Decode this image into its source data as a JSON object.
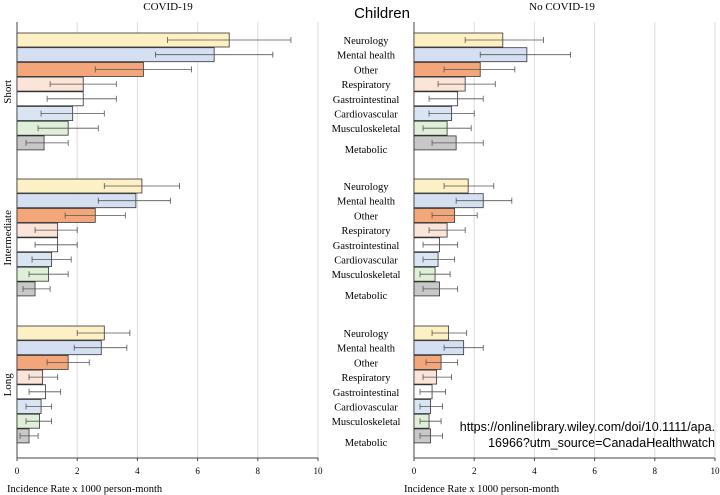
{
  "title": "Children",
  "source_note": {
    "line1": "https://onlinelibrary.wiley.com/doi/10.1111/apa.",
    "line2": "16966?utm_source=CanadaHealthwatch"
  },
  "chart_data": {
    "type": "bar",
    "orientation": "horizontal",
    "title": "Children",
    "xlabel": "Incidence Rate x 1000 person-month",
    "xlim": [
      0,
      10
    ],
    "xticks": [
      0,
      2,
      4,
      6,
      8,
      10
    ],
    "grid": true,
    "categories": [
      "Neurology",
      "Mental health",
      "Other",
      "Respiratory",
      "Gastrointestinal",
      "Cardiovascular",
      "Musculoskeletal",
      "Metabolic"
    ],
    "category_colors": {
      "Neurology": "#fdf0c4",
      "Mental health": "#d4dff1",
      "Other": "#f2a67a",
      "Respiratory": "#fbe4d8",
      "Gastrointestinal": "#ffffff",
      "Cardiovascular": "#dae5f4",
      "Musculoskeletal": "#e0efd7",
      "Metabolic": "#c8c8c8"
    },
    "periods": [
      "Short",
      "Intermediate",
      "Long"
    ],
    "panels": [
      {
        "name": "COVID-19",
        "groups": [
          {
            "period": "Short",
            "values": [
              7.05,
              6.55,
              4.2,
              2.2,
              2.2,
              1.85,
              1.7,
              0.9
            ],
            "error_low": [
              5.0,
              4.6,
              2.6,
              1.1,
              1.0,
              0.8,
              0.7,
              0.3
            ],
            "error_high": [
              9.1,
              8.5,
              5.8,
              3.3,
              3.3,
              2.9,
              2.7,
              1.7
            ]
          },
          {
            "period": "Intermediate",
            "values": [
              4.15,
              3.95,
              2.6,
              1.35,
              1.35,
              1.15,
              1.05,
              0.6
            ],
            "error_low": [
              2.9,
              2.7,
              1.6,
              0.6,
              0.6,
              0.5,
              0.4,
              0.2
            ],
            "error_high": [
              5.4,
              5.1,
              3.6,
              2.0,
              2.0,
              1.8,
              1.7,
              1.1
            ]
          },
          {
            "period": "Long",
            "values": [
              2.9,
              2.8,
              1.7,
              0.85,
              0.95,
              0.8,
              0.75,
              0.4
            ],
            "error_low": [
              2.0,
              1.9,
              1.0,
              0.4,
              0.4,
              0.3,
              0.3,
              0.1
            ],
            "error_high": [
              3.75,
              3.65,
              2.4,
              1.35,
              1.45,
              1.15,
              1.15,
              0.7
            ]
          }
        ]
      },
      {
        "name": "No COVID-19",
        "groups": [
          {
            "period": "Short",
            "values": [
              2.95,
              3.75,
              2.2,
              1.7,
              1.45,
              1.25,
              1.1,
              1.4
            ],
            "error_low": [
              1.7,
              2.2,
              1.0,
              0.8,
              0.5,
              0.5,
              0.3,
              0.6
            ],
            "error_high": [
              4.3,
              5.2,
              3.35,
              2.7,
              2.3,
              2.0,
              1.9,
              2.3
            ]
          },
          {
            "period": "Intermediate",
            "values": [
              1.8,
              2.3,
              1.35,
              1.1,
              0.85,
              0.8,
              0.7,
              0.85
            ],
            "error_low": [
              1.0,
              1.4,
              0.6,
              0.5,
              0.3,
              0.3,
              0.2,
              0.3
            ],
            "error_high": [
              2.65,
              3.25,
              2.1,
              1.7,
              1.45,
              1.35,
              1.2,
              1.45
            ]
          },
          {
            "period": "Long",
            "values": [
              1.15,
              1.65,
              0.9,
              0.75,
              0.6,
              0.55,
              0.5,
              0.55
            ],
            "error_low": [
              0.6,
              1.0,
              0.4,
              0.3,
              0.2,
              0.2,
              0.2,
              0.2
            ],
            "error_high": [
              1.75,
              2.3,
              1.45,
              1.25,
              1.05,
              0.95,
              0.9,
              0.95
            ]
          }
        ]
      }
    ]
  }
}
